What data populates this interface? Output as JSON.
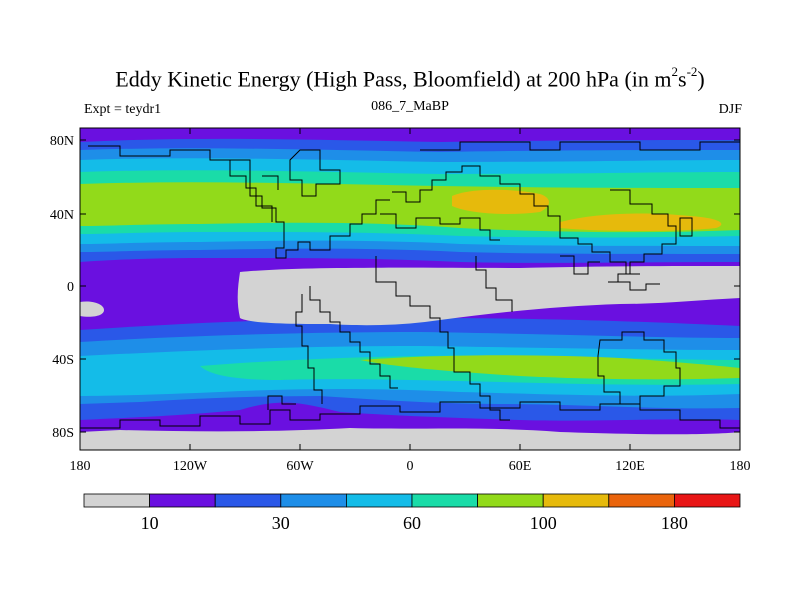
{
  "title_main": "Eddy Kinetic Energy (High Pass, Bloomfield) at 200 hPa (in m",
  "title_sup1": "2",
  "title_mid": "s",
  "title_sup2": "-2",
  "title_end": ")",
  "subtitle": "086_7_MaBP",
  "left_label": "Expt = teydr1",
  "right_label": "DJF",
  "x_ticks": [
    "180",
    "120W",
    "60W",
    "0",
    "60E",
    "120E",
    "180"
  ],
  "y_ticks": [
    "80N",
    "40N",
    "0",
    "40S",
    "80S"
  ],
  "colorbar": {
    "colors": [
      "#d3d3d3",
      "#6a10e0",
      "#2a58e8",
      "#1e8ee8",
      "#14bce8",
      "#1adca8",
      "#92da1a",
      "#e6ba0c",
      "#ea640c",
      "#e81616"
    ],
    "labels": [
      "10",
      "30",
      "60",
      "100",
      "180"
    ]
  },
  "colors": {
    "gray": "#d3d3d3",
    "purple": "#6a10e0",
    "blue": "#2a58e8",
    "midblue": "#1e8ee8",
    "cyan": "#14bce8",
    "green": "#1adca8",
    "lime": "#92da1a",
    "orange": "#e6ba0c"
  }
}
